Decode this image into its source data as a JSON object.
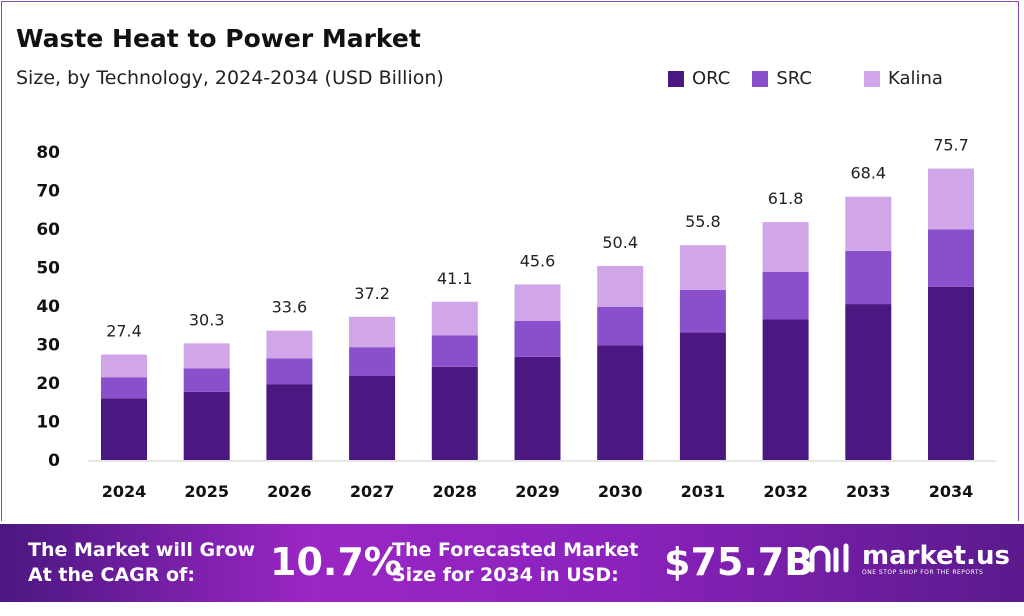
{
  "header": {
    "title": "Waste Heat to Power Market",
    "subtitle": "Size, by Technology, 2024-2034 (USD Billion)"
  },
  "chart_data": {
    "type": "bar",
    "stacked": true,
    "title": "Waste Heat to Power Market",
    "subtitle": "Size, by Technology, 2024-2034 (USD Billion)",
    "categories": [
      "2024",
      "2025",
      "2026",
      "2027",
      "2028",
      "2029",
      "2030",
      "2031",
      "2032",
      "2033",
      "2034"
    ],
    "series": [
      {
        "name": "ORC",
        "color": "#4b1780",
        "values": [
          16.0,
          17.7,
          19.7,
          21.9,
          24.2,
          26.8,
          29.8,
          33.1,
          36.5,
          40.5,
          45.0
        ]
      },
      {
        "name": "SRC",
        "color": "#8a4fcb",
        "values": [
          5.5,
          6.1,
          6.7,
          7.4,
          8.2,
          9.3,
          10.0,
          11.1,
          12.4,
          13.8,
          14.9
        ]
      },
      {
        "name": "Kalina",
        "color": "#d0a6e8",
        "values": [
          5.9,
          6.5,
          7.2,
          7.9,
          8.7,
          9.5,
          10.6,
          11.6,
          12.9,
          14.1,
          15.8
        ]
      }
    ],
    "totals": [
      "27.4",
      "30.3",
      "33.6",
      "37.2",
      "41.1",
      "45.6",
      "50.4",
      "55.8",
      "61.8",
      "68.4",
      "75.7"
    ],
    "yticks": [
      "0",
      "10",
      "20",
      "30",
      "40",
      "50",
      "60",
      "70",
      "80"
    ],
    "ylim": [
      0,
      80
    ],
    "grid": false,
    "legend_position": "top-right"
  },
  "banner": {
    "cagr_label_1": "The Market will Grow",
    "cagr_label_2": "At the CAGR of:",
    "cagr_value": "10.7%",
    "forecast_label_1": "The Forecasted Market",
    "forecast_label_2": "Size for 2034 in USD:",
    "forecast_value": "$75.7B",
    "logo_text": "market.us",
    "logo_tagline": "ONE STOP SHOP FOR THE REPORTS"
  }
}
